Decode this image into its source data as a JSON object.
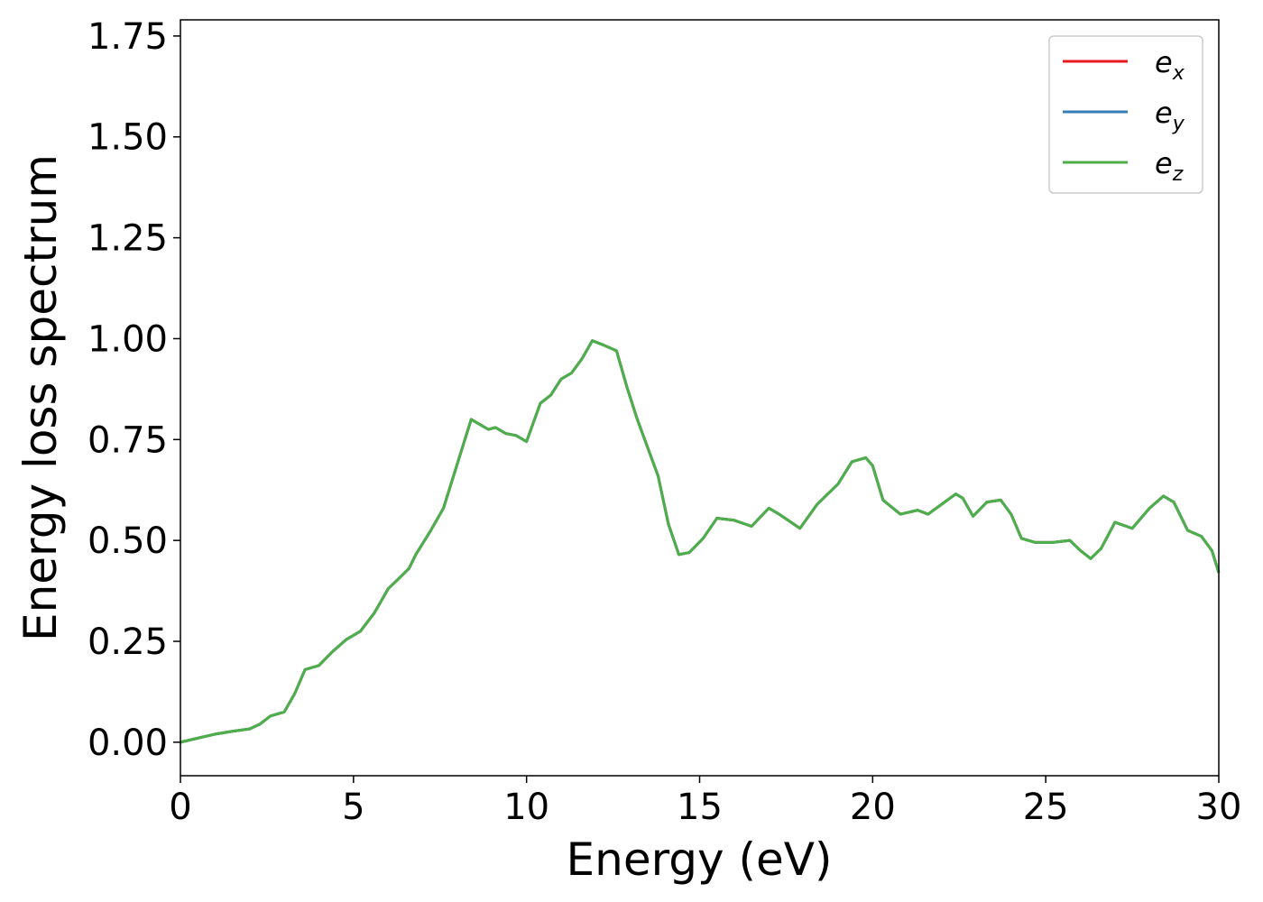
{
  "chart_data": {
    "type": "line",
    "xlabel": "Energy (eV)",
    "ylabel": "Energy loss spectrum",
    "xlim": [
      0,
      30
    ],
    "xticks": [
      0,
      5,
      10,
      15,
      20,
      25,
      30
    ],
    "ylim": [
      -0.083,
      1.79
    ],
    "yticks": [
      {
        "value": 0,
        "label": "0.00"
      },
      0.25,
      {
        "value": 0.5,
        "label": "0.50"
      },
      0.75,
      {
        "value": 1,
        "label": "1.00"
      },
      1.25,
      {
        "value": 1.5,
        "label": "1.50"
      },
      1.75
    ],
    "legend": "upper right",
    "x": [
      0,
      0.5,
      1,
      1.5,
      2,
      2.3,
      2.6,
      3.0,
      3.3,
      3.6,
      4.0,
      4.4,
      4.8,
      5.2,
      5.6,
      6.0,
      6.3,
      6.6,
      6.8,
      7.2,
      7.6,
      8.0,
      8.4,
      8.6,
      8.9,
      9.1,
      9.4,
      9.7,
      10.0,
      10.4,
      10.7,
      11.0,
      11.3,
      11.6,
      11.9,
      12.2,
      12.6,
      12.9,
      13.2,
      13.5,
      13.8,
      14.1,
      14.4,
      14.7,
      15.1,
      15.5,
      16.0,
      16.5,
      17.0,
      17.3,
      17.9,
      18.4,
      19.0,
      19.4,
      19.8,
      20.0,
      20.3,
      20.8,
      21.3,
      21.6,
      22.0,
      22.4,
      22.6,
      22.9,
      23.3,
      23.7,
      24.0,
      24.3,
      24.7,
      25.2,
      25.7,
      26.0,
      26.3,
      26.6,
      27.0,
      27.5,
      28.0,
      28.4,
      28.7,
      29.1,
      29.5,
      29.8,
      30.0
    ],
    "series": [
      {
        "name": "ex",
        "color": "#e41a1c",
        "values": [
          0.0,
          0.01,
          0.02,
          0.027,
          0.033,
          0.045,
          0.065,
          0.075,
          0.12,
          0.18,
          0.19,
          0.225,
          0.255,
          0.275,
          0.32,
          0.38,
          0.405,
          0.43,
          0.465,
          0.52,
          0.58,
          0.69,
          0.8,
          0.79,
          0.775,
          0.78,
          0.765,
          0.76,
          0.745,
          0.84,
          0.86,
          0.9,
          0.915,
          0.95,
          0.995,
          0.985,
          0.97,
          0.88,
          0.8,
          0.73,
          0.66,
          0.54,
          0.465,
          0.47,
          0.505,
          0.555,
          0.55,
          0.535,
          0.58,
          0.565,
          0.53,
          0.59,
          0.64,
          0.695,
          0.705,
          0.685,
          0.6,
          0.565,
          0.575,
          0.565,
          0.59,
          0.615,
          0.605,
          0.56,
          0.595,
          0.6,
          0.565,
          0.505,
          0.495,
          0.495,
          0.5,
          0.475,
          0.455,
          0.48,
          0.545,
          0.53,
          0.58,
          0.61,
          0.595,
          0.525,
          0.51,
          0.475,
          0.42
        ]
      },
      {
        "name": "ey",
        "color": "#377eb8",
        "values": [
          0.0,
          0.01,
          0.02,
          0.027,
          0.033,
          0.045,
          0.065,
          0.075,
          0.12,
          0.18,
          0.19,
          0.225,
          0.255,
          0.275,
          0.32,
          0.38,
          0.405,
          0.43,
          0.465,
          0.52,
          0.58,
          0.69,
          0.8,
          0.79,
          0.775,
          0.78,
          0.765,
          0.76,
          0.745,
          0.84,
          0.86,
          0.9,
          0.915,
          0.95,
          0.995,
          0.985,
          0.97,
          0.88,
          0.8,
          0.73,
          0.66,
          0.54,
          0.465,
          0.47,
          0.505,
          0.555,
          0.55,
          0.535,
          0.58,
          0.565,
          0.53,
          0.59,
          0.64,
          0.695,
          0.705,
          0.685,
          0.6,
          0.565,
          0.575,
          0.565,
          0.59,
          0.615,
          0.605,
          0.56,
          0.595,
          0.6,
          0.565,
          0.505,
          0.495,
          0.495,
          0.5,
          0.475,
          0.455,
          0.48,
          0.545,
          0.53,
          0.58,
          0.61,
          0.595,
          0.525,
          0.51,
          0.475,
          0.42
        ]
      },
      {
        "name": "ez",
        "color": "#4daf4a",
        "values": [
          0.0,
          0.01,
          0.02,
          0.027,
          0.033,
          0.045,
          0.065,
          0.075,
          0.12,
          0.18,
          0.19,
          0.225,
          0.255,
          0.275,
          0.32,
          0.38,
          0.405,
          0.43,
          0.465,
          0.52,
          0.58,
          0.69,
          0.8,
          0.79,
          0.775,
          0.78,
          0.765,
          0.76,
          0.745,
          0.84,
          0.86,
          0.9,
          0.915,
          0.95,
          0.995,
          0.985,
          0.97,
          0.88,
          0.8,
          0.73,
          0.66,
          0.54,
          0.465,
          0.47,
          0.505,
          0.555,
          0.55,
          0.535,
          0.58,
          0.565,
          0.53,
          0.59,
          0.64,
          0.695,
          0.705,
          0.685,
          0.6,
          0.565,
          0.575,
          0.565,
          0.59,
          0.615,
          0.605,
          0.56,
          0.595,
          0.6,
          0.565,
          0.505,
          0.495,
          0.495,
          0.5,
          0.475,
          0.455,
          0.48,
          0.545,
          0.53,
          0.58,
          0.61,
          0.595,
          0.525,
          0.51,
          0.475,
          0.42
        ]
      }
    ]
  }
}
